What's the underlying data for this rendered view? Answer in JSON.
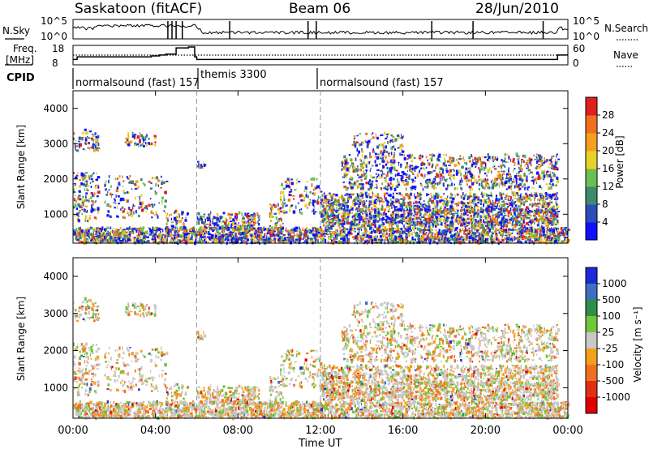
{
  "header": {
    "station": "Saskatoon (fitACF)",
    "beam": "Beam 06",
    "date": "28/Jun/2010"
  },
  "top_panel": {
    "nsky_label": "N.Sky",
    "nsky_ticks": [
      "10^5",
      "10^0"
    ],
    "nsearch_label": "N.Search",
    "nsearch_ticks": [
      "10^5",
      "10^0"
    ],
    "freq_label_1": "Freq.",
    "freq_label_2": "[MHz]",
    "freq_ticks": [
      "18",
      "8"
    ],
    "nave_label": "Nave",
    "nave_ticks": [
      "60",
      "0"
    ],
    "cpid_label": "CPID",
    "cpid_segments": [
      {
        "label": "normalsound (fast) 157",
        "start_h": 0.0
      },
      {
        "label": "themis 3300",
        "start_h": 6.0
      },
      {
        "label": "normalsound (fast) 157",
        "start_h": 12.0
      }
    ]
  },
  "chart_data": [
    {
      "type": "heatmap",
      "title": "",
      "xlabel": "",
      "ylabel": "Slant Range [km]",
      "xlim": [
        0,
        24
      ],
      "ylim": [
        180,
        4500
      ],
      "yticks": [
        "1000",
        "2000",
        "3000",
        "4000"
      ],
      "colorbar_label": "Power [dB]",
      "colorbar_ticks": [
        "4",
        "8",
        "12",
        "16",
        "20",
        "24",
        "28"
      ],
      "colorbar_colors": [
        "#1010ff",
        "#2b4db8",
        "#3d8a6c",
        "#6abf52",
        "#e6d22b",
        "#f5a01c",
        "#f07020",
        "#e02020"
      ]
    },
    {
      "type": "heatmap",
      "title": "",
      "xlabel": "Time UT",
      "ylabel": "Slant Range [km]",
      "xlim": [
        0,
        24
      ],
      "ylim": [
        180,
        4500
      ],
      "xticks": [
        "00:00",
        "04:00",
        "08:00",
        "12:00",
        "16:00",
        "20:00",
        "00:00"
      ],
      "yticks": [
        "1000",
        "2000",
        "3000",
        "4000"
      ],
      "colorbar_label": "Velocity [m s⁻¹]",
      "colorbar_ticks": [
        "1000",
        "500",
        "100",
        "25",
        "-25",
        "-100",
        "-500",
        "-1000"
      ],
      "colorbar_colors": [
        "#1c2ad8",
        "#3f6fc0",
        "#2f8f4a",
        "#72c63a",
        "#c8c8c8",
        "#f5a01c",
        "#f07020",
        "#e03010",
        "#e00000"
      ]
    }
  ]
}
